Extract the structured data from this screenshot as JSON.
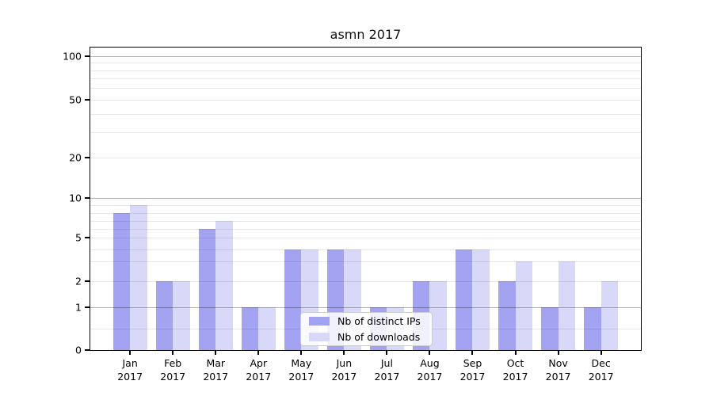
{
  "title": "asmn 2017",
  "chart_data": {
    "type": "bar",
    "title": "asmn 2017",
    "x_axis": {
      "categories": [
        "Jan",
        "Feb",
        "Mar",
        "Apr",
        "May",
        "Jun",
        "Jul",
        "Aug",
        "Sep",
        "Oct",
        "Nov",
        "Dec"
      ],
      "sub_label": "2017"
    },
    "y_axis": {
      "scale": "symlog",
      "tick_values": [
        100,
        50,
        20,
        10,
        5,
        2,
        1,
        0
      ],
      "tick_labels": [
        "100",
        "50",
        "20",
        "10",
        "5",
        "2",
        "1",
        "0"
      ],
      "ylim": [
        0,
        115
      ],
      "grid": "horizontal",
      "grid_major_values": [
        1,
        10,
        100
      ],
      "grid_minor_values": [
        0.5,
        2,
        3,
        4,
        5,
        6,
        7,
        8,
        9,
        20,
        30,
        40,
        50,
        60,
        70,
        80,
        90
      ]
    },
    "series": [
      {
        "name": "Nb of distinct IPs",
        "color": "#a3a3f2",
        "values": [
          8,
          2,
          6,
          1,
          4,
          4,
          1,
          2,
          4,
          2,
          1,
          1
        ]
      },
      {
        "name": "Nb of downloads",
        "color": "#d8d8f8",
        "values": [
          9,
          2,
          7,
          1,
          4,
          4,
          1,
          2,
          4,
          3,
          3,
          2
        ]
      }
    ],
    "legend": {
      "position": "lower-center-inside",
      "entries": [
        "Nb of distinct IPs",
        "Nb of downloads"
      ]
    },
    "colors": {
      "background": "#ffffff",
      "spine": "#000000",
      "grid_major": "#b0b0b0",
      "grid_minor": "#e7e7e7",
      "text": "#000000"
    }
  }
}
